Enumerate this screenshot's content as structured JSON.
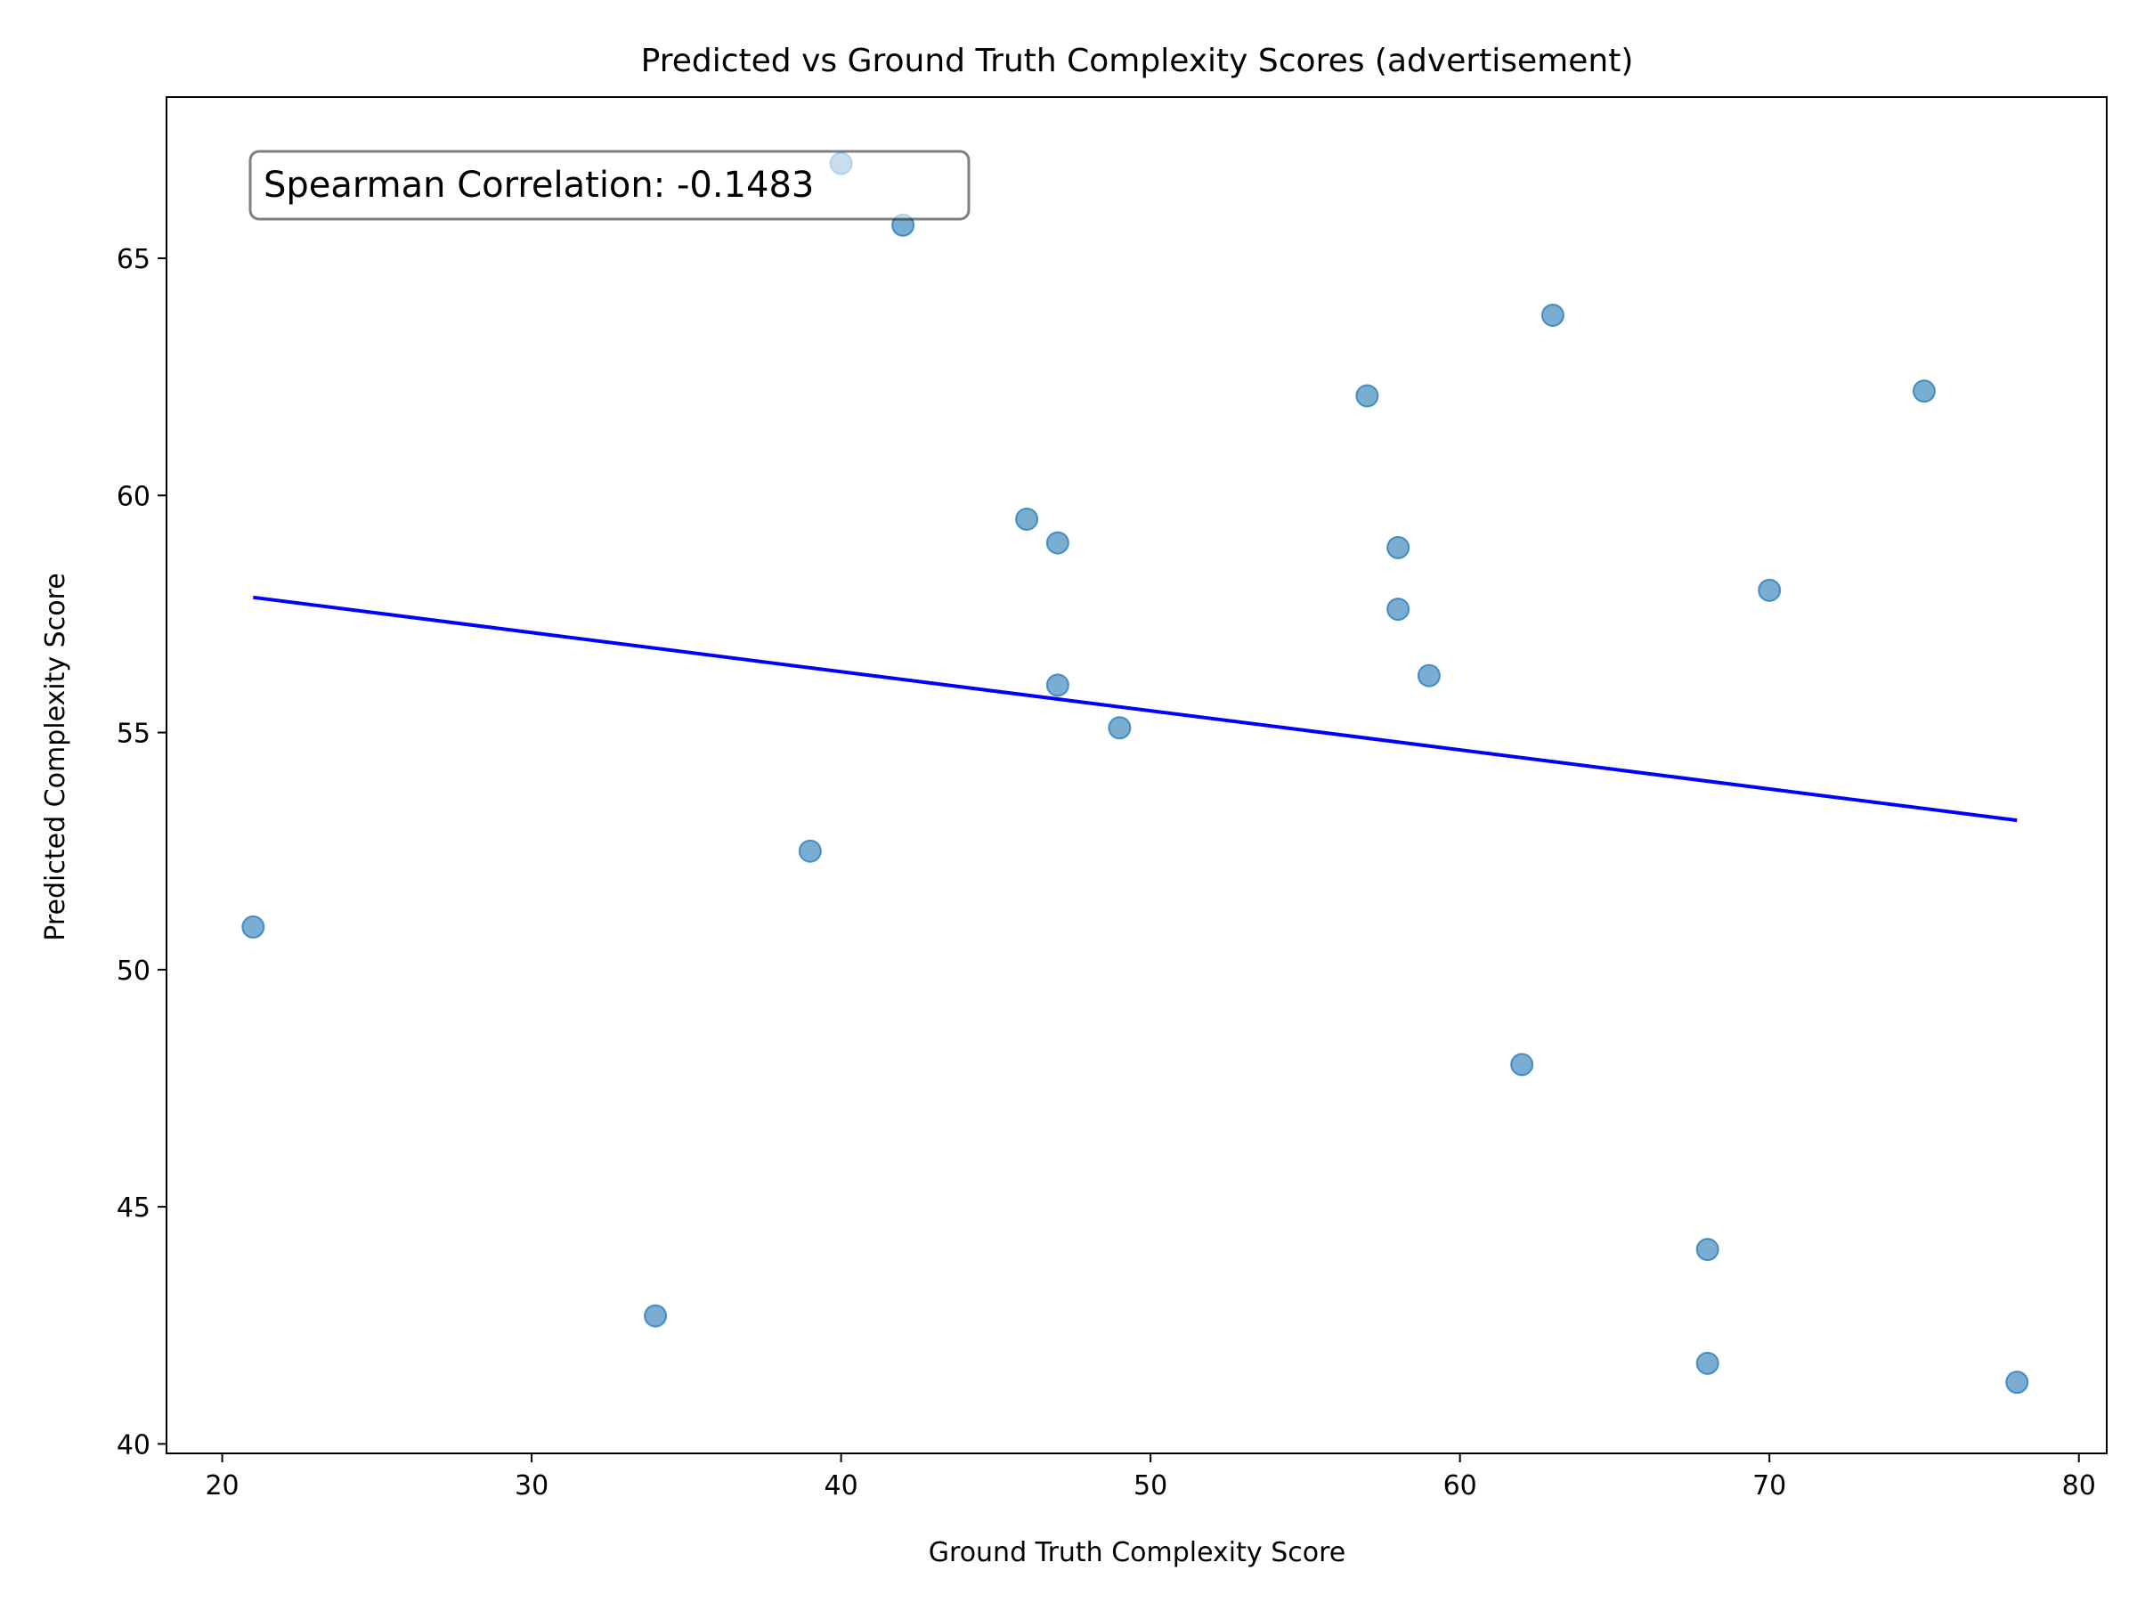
{
  "chart_data": {
    "type": "scatter",
    "title": "Predicted vs Ground Truth Complexity Scores (advertisement)",
    "xlabel": "Ground Truth Complexity Score",
    "ylabel": "Predicted Complexity Score",
    "xlim": [
      18.2,
      80.9
    ],
    "ylim": [
      39.8,
      68.4
    ],
    "xticks": [
      20,
      30,
      40,
      50,
      60,
      70,
      80
    ],
    "yticks": [
      40,
      45,
      50,
      55,
      60,
      65
    ],
    "grid": false,
    "point_color": "#1f77b4",
    "line_color": "#0000ff",
    "points": {
      "x": [
        40,
        42,
        63,
        57,
        75,
        46,
        47,
        58,
        70,
        58,
        59,
        47,
        49,
        39,
        21,
        62,
        68,
        34,
        68,
        78
      ],
      "y": [
        67.0,
        65.7,
        63.8,
        62.1,
        62.2,
        59.5,
        59.0,
        58.9,
        58.0,
        57.6,
        56.2,
        56.0,
        55.1,
        52.5,
        50.9,
        48.0,
        44.1,
        42.7,
        41.7,
        41.3
      ]
    },
    "trend_line": {
      "x": [
        21,
        78
      ],
      "y": [
        57.85,
        53.15
      ]
    },
    "annotation": {
      "text": "Spearman Correlation: -0.1483",
      "placement": "top-left"
    }
  }
}
